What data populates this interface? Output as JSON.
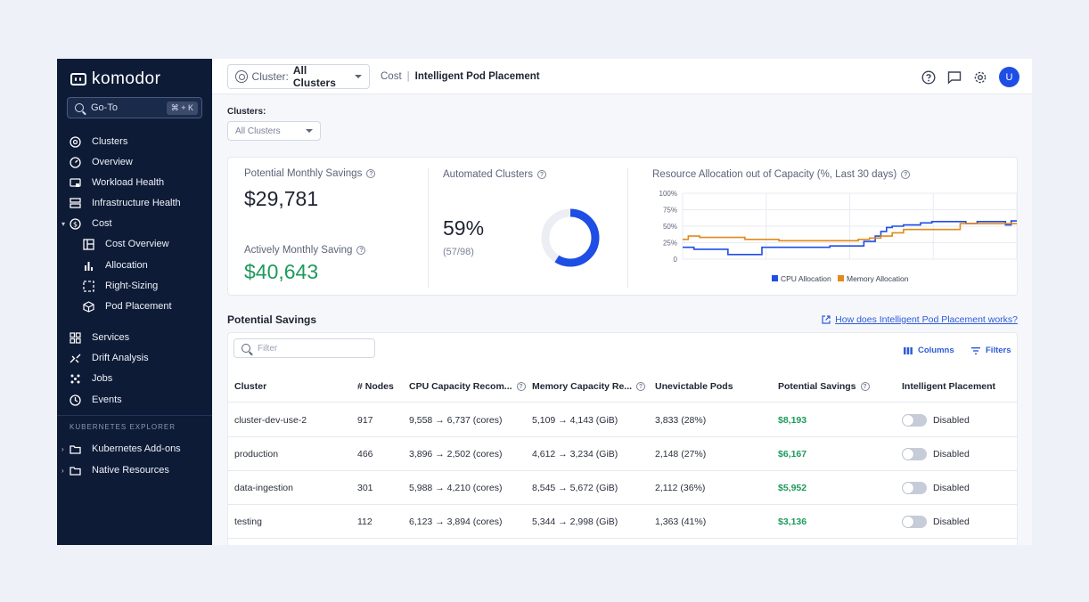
{
  "sidebar": {
    "logo": "komodor",
    "goto": {
      "label": "Go-To",
      "shortcut": "⌘ + K"
    },
    "items": [
      {
        "label": "Clusters",
        "icon": "k8s-icon"
      },
      {
        "label": "Overview",
        "icon": "gauge-icon"
      },
      {
        "label": "Workload Health",
        "icon": "workload-icon"
      },
      {
        "label": "Infrastructure Health",
        "icon": "infrastructure-icon"
      },
      {
        "label": "Cost",
        "icon": "dollar-icon"
      },
      {
        "label": "Cost Overview",
        "icon": "layout-icon"
      },
      {
        "label": "Allocation",
        "icon": "bar-chart-icon"
      },
      {
        "label": "Right-Sizing",
        "icon": "resize-icon"
      },
      {
        "label": "Pod Placement",
        "icon": "cube-icon"
      },
      {
        "label": "Services",
        "icon": "grid-icon"
      },
      {
        "label": "Drift Analysis",
        "icon": "drift-icon"
      },
      {
        "label": "Jobs",
        "icon": "jobs-icon"
      },
      {
        "label": "Events",
        "icon": "clock-icon"
      }
    ],
    "section_label": "KUBERNETES EXPLORER",
    "explorer": [
      {
        "label": "Kubernetes Add-ons",
        "icon": "folder-icon"
      },
      {
        "label": "Native Resources",
        "icon": "folder-icon"
      }
    ]
  },
  "topbar": {
    "cluster_key": "Cluster:",
    "cluster_value": "All Clusters",
    "breadcrumb_root": "Cost",
    "breadcrumb_sep": "|",
    "breadcrumb_current": "Intelligent Pod Placement",
    "avatar": "U"
  },
  "filters": {
    "label": "Clusters:",
    "value": "All Clusters"
  },
  "stats": {
    "potential_label": "Potential Monthly Savings",
    "potential_value": "$29,781",
    "actively_label": "Actively Monthly Saving",
    "actively_value": "$40,643",
    "automated_label": "Automated Clusters",
    "automated_pct": "59%",
    "automated_fraction": "(57/98)",
    "automated_ratio": 0.59,
    "accent": "#1f4ee5"
  },
  "chart_data": {
    "type": "line",
    "title": "Resource Allocation out of Capacity (%, Last 30 days)",
    "ylim": [
      0,
      100
    ],
    "yticks": [
      "100%",
      "75%",
      "50%",
      "25%",
      "0"
    ],
    "grid": true,
    "legend_placement": "bottom",
    "series": [
      {
        "name": "CPU Allocation",
        "color": "#1f4ee5",
        "values": [
          18,
          18,
          15,
          15,
          15,
          15,
          15,
          15,
          7,
          7,
          7,
          7,
          7,
          7,
          18,
          18,
          18,
          18,
          18,
          18,
          18,
          18,
          18,
          18,
          18,
          18,
          20,
          20,
          20,
          20,
          20,
          20,
          27,
          27,
          35,
          42,
          48,
          50,
          50,
          52,
          52,
          52,
          55,
          55,
          57,
          57,
          57,
          57,
          57,
          57,
          54,
          54,
          57,
          57,
          57,
          57,
          57,
          52,
          58,
          58
        ]
      },
      {
        "name": "Memory Allocation",
        "color": "#e08a1b",
        "values": [
          30,
          35,
          35,
          33,
          33,
          33,
          33,
          33,
          33,
          33,
          33,
          30,
          30,
          30,
          30,
          30,
          30,
          28,
          28,
          28,
          28,
          28,
          28,
          28,
          28,
          28,
          28,
          28,
          28,
          28,
          28,
          30,
          30,
          32,
          32,
          35,
          35,
          40,
          40,
          45,
          45,
          45,
          45,
          45,
          45,
          45,
          45,
          45,
          45,
          54,
          54,
          54,
          54,
          54,
          54,
          54,
          54,
          54,
          54,
          54
        ]
      }
    ]
  },
  "savings": {
    "title": "Potential Savings",
    "help_link": "How does Intelligent Pod Placement works?",
    "filter_placeholder": "Filter",
    "columns_btn": "Columns",
    "filters_btn": "Filters",
    "columns": [
      "Cluster",
      "# Nodes",
      "CPU Capacity Recom...",
      "Memory Capacity Re...",
      "Unevictable Pods",
      "Potential Savings",
      "Intelligent Placement"
    ],
    "rows": [
      {
        "cluster": "cluster-dev-use-2",
        "nodes": "917",
        "cpu": "9,558  → 6,737 (cores)",
        "mem": "5,109  → 4,143 (GiB)",
        "pods": "3,833 (28%)",
        "savings": "$8,193",
        "placement": "Disabled"
      },
      {
        "cluster": "production",
        "nodes": "466",
        "cpu": "3,896  → 2,502 (cores)",
        "mem": "4,612  → 3,234 (GiB)",
        "pods": "2,148 (27%)",
        "savings": "$6,167",
        "placement": "Disabled"
      },
      {
        "cluster": "data-ingestion",
        "nodes": "301",
        "cpu": "5,988  → 4,210 (cores)",
        "mem": "8,545  → 5,672 (GiB)",
        "pods": "2,112 (36%)",
        "savings": "$5,952",
        "placement": "Disabled"
      },
      {
        "cluster": "testing",
        "nodes": "112",
        "cpu": "6,123  → 3,894 (cores)",
        "mem": "5,344  → 2,998 (GiB)",
        "pods": "1,363 (41%)",
        "savings": "$3,136",
        "placement": "Disabled"
      }
    ]
  }
}
